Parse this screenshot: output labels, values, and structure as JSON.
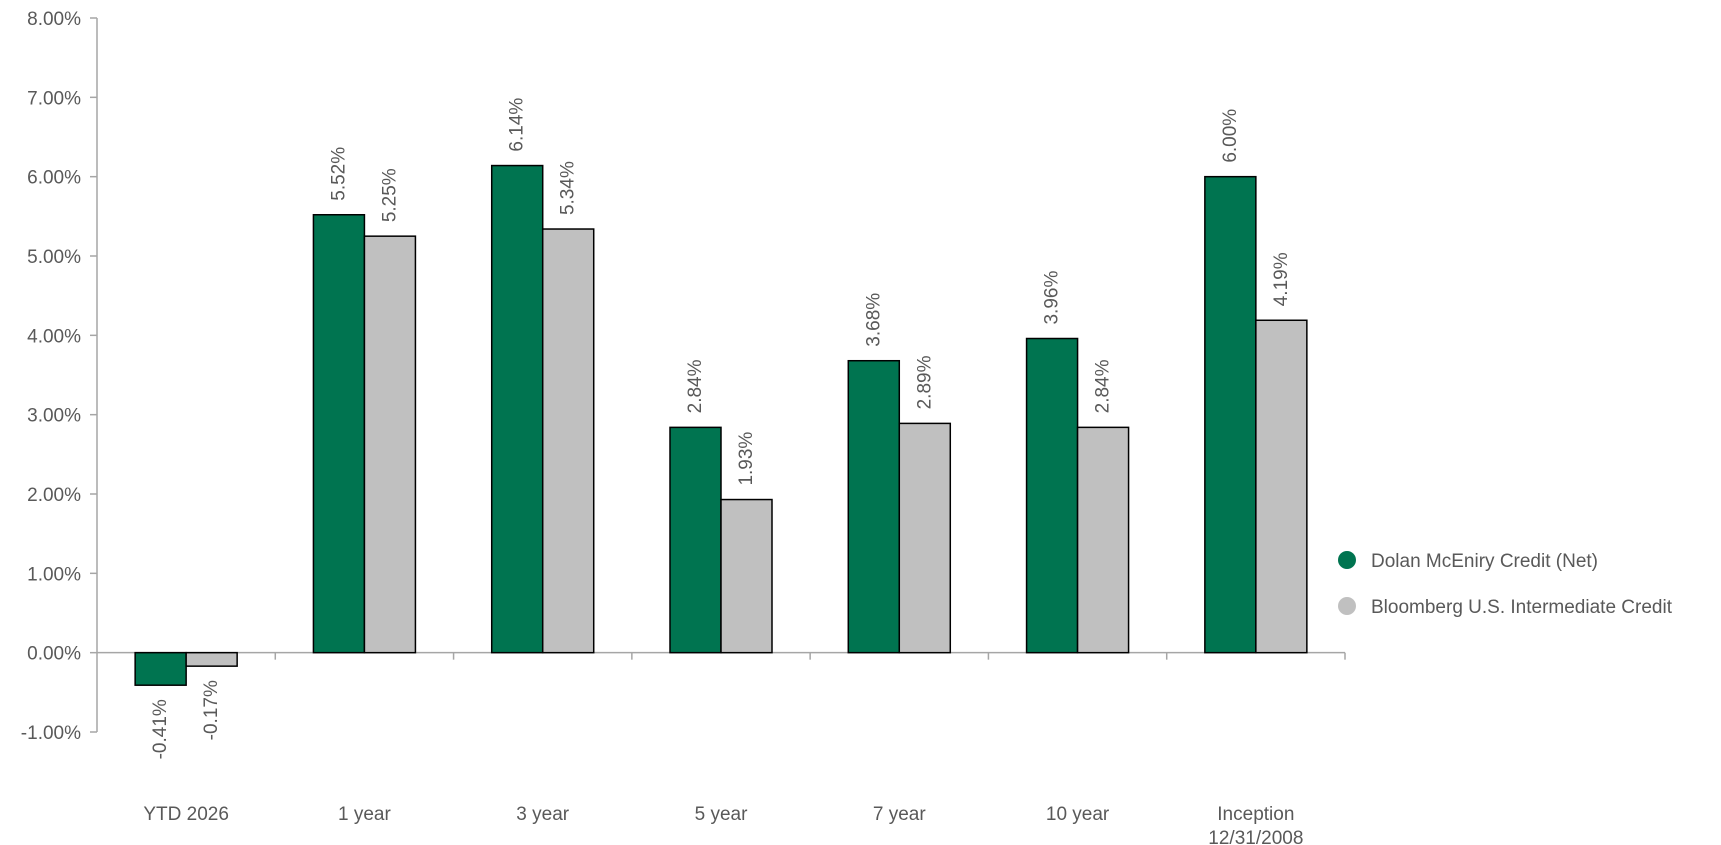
{
  "chart_data": {
    "type": "bar",
    "categories": [
      "YTD 2026",
      "1 year",
      "3 year",
      "5 year",
      "7 year",
      "10 year",
      "Inception\n12/31/2008"
    ],
    "series": [
      {
        "name": "Dolan McEniry Credit (Net)",
        "color": "#007450",
        "values": [
          -0.41,
          5.52,
          6.14,
          2.84,
          3.68,
          3.96,
          6.0
        ],
        "labels": [
          "-0.41%",
          "5.52%",
          "6.14%",
          "2.84%",
          "3.68%",
          "3.96%",
          "6.00%"
        ]
      },
      {
        "name": "Bloomberg U.S. Intermediate Credit",
        "color": "#c0c0c0",
        "values": [
          -0.17,
          5.25,
          5.34,
          1.93,
          2.89,
          2.84,
          4.19
        ],
        "labels": [
          "-0.17%",
          "5.25%",
          "5.34%",
          "1.93%",
          "2.89%",
          "2.84%",
          "4.19%"
        ]
      }
    ],
    "ylim": [
      -1,
      8
    ],
    "yticks": [
      -1,
      0,
      1,
      2,
      3,
      4,
      5,
      6,
      7,
      8
    ],
    "ytick_labels": [
      "-1.00%",
      "0.00%",
      "1.00%",
      "2.00%",
      "3.00%",
      "4.00%",
      "5.00%",
      "6.00%",
      "7.00%",
      "8.00%"
    ],
    "title": "",
    "xlabel": "",
    "ylabel": "",
    "grid": false,
    "legend_position": "right"
  }
}
